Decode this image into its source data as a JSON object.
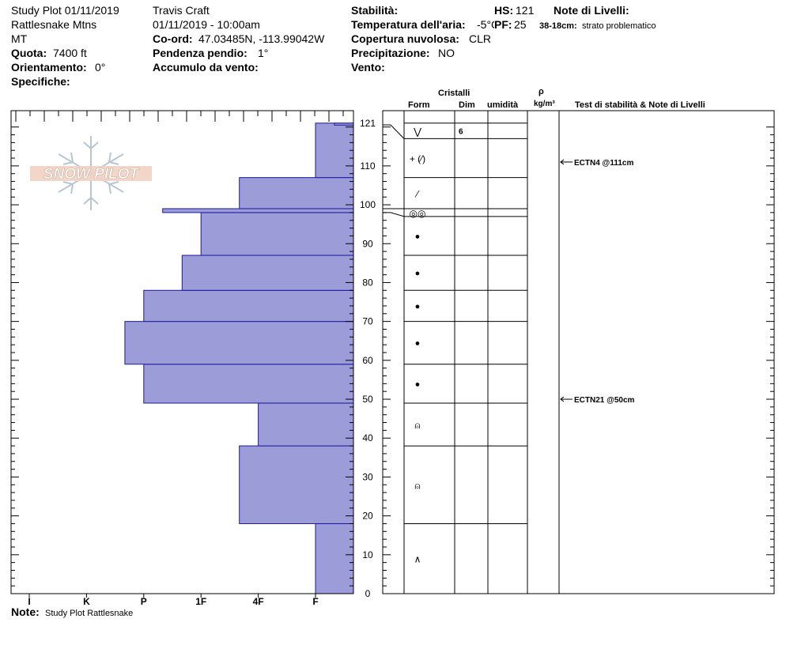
{
  "header": {
    "col1": {
      "title": "Study Plot 01/11/2019",
      "location": "Rattlesnake Mtns",
      "state": "MT",
      "elevation_label": "Quota:",
      "elevation_value": "7400 ft",
      "aspect_label": "Orientamento:",
      "aspect_value": "0°",
      "specifics_label": "Specifiche:"
    },
    "col2": {
      "observer": "Travis  Craft",
      "datetime": "01/11/2019 - 10:00am",
      "coord_label": "Co-ord:",
      "coord_value": "47.03485N, -113.99042W",
      "slope_label": "Pendenza pendio:",
      "slope_value": "1°",
      "wind_loading_label": "Accumulo da vento:"
    },
    "col3": {
      "stability_label": "Stabilità:",
      "air_temp_label": "Temperatura dell'aria:",
      "air_temp_value": "-5°C",
      "cloud_label": "Copertura nuvolosa:",
      "cloud_value": "CLR",
      "precip_label": "Precipitazione:",
      "precip_value": "NO",
      "wind_label": "Vento:"
    },
    "col4": {
      "hs_label": "HS:",
      "hs_value": "121",
      "pf_label": "PF:",
      "pf_value": "25"
    },
    "col5": {
      "layer_notes_label": "Note di Livelli:",
      "note_depth": "38-18cm:",
      "note_text": "strato problematico"
    }
  },
  "table_headers": {
    "crystals": "Cristalli",
    "form": "Form",
    "size": "Dim",
    "moisture": "umidità",
    "rho": "ρ",
    "density_unit": "kg/m³",
    "stability_notes": "Test di stabilità & Note di Livelli"
  },
  "footer": {
    "note_label": "Note:",
    "note_text": "Study Plot Rattlesnake"
  },
  "logo_text": "SNOW PILOT",
  "colors": {
    "bar_fill": "#9c9cd8",
    "bar_stroke": "#1a1aa0"
  },
  "chart_data": {
    "type": "bar",
    "orientation": "horizontal-step",
    "yaxis": {
      "range": [
        0,
        121
      ],
      "ticks": [
        "0",
        "10",
        "20",
        "30",
        "40",
        "50",
        "60",
        "70",
        "80",
        "90",
        "100",
        "110",
        "121"
      ]
    },
    "xaxis": {
      "categories": [
        "I",
        "K",
        "P",
        "1F",
        "4F",
        "F"
      ]
    },
    "hardness_layers": [
      {
        "bottom": 0,
        "top": 18,
        "hardness": "F"
      },
      {
        "bottom": 18,
        "top": 38,
        "hardness": "4F-"
      },
      {
        "bottom": 38,
        "top": 49,
        "hardness": "4F"
      },
      {
        "bottom": 49,
        "top": 59,
        "hardness": "P"
      },
      {
        "bottom": 59,
        "top": 70,
        "hardness": "P+"
      },
      {
        "bottom": 70,
        "top": 78,
        "hardness": "P"
      },
      {
        "bottom": 78,
        "top": 87,
        "hardness": "1F-"
      },
      {
        "bottom": 87,
        "top": 98,
        "hardness": "1F"
      },
      {
        "bottom": 98,
        "top": 99,
        "hardness": "P-"
      },
      {
        "bottom": 99,
        "top": 107,
        "hardness": "4F-"
      },
      {
        "bottom": 107,
        "top": 121,
        "hardness": "F"
      },
      {
        "bottom": 121,
        "top": 121,
        "hardness": "F-"
      }
    ],
    "hardness_positions": [
      {
        "hardness": "F",
        "value": 5.0
      },
      {
        "hardness": "4F",
        "value": 4.0
      },
      {
        "hardness": "4F-",
        "value": 3.67
      },
      {
        "hardness": "1F",
        "value": 3.0
      },
      {
        "hardness": "1F-",
        "value": 2.67
      },
      {
        "hardness": "P",
        "value": 2.0
      },
      {
        "hardness": "P+",
        "value": 1.67
      },
      {
        "hardness": "P-",
        "value": 2.33
      },
      {
        "hardness": "F-",
        "value": 5.33
      }
    ],
    "crystal_layers": [
      {
        "bottom": 117,
        "top": 121,
        "form": "precipitation-particles",
        "glyph": "⋁",
        "size": "6"
      },
      {
        "bottom": 107,
        "top": 117,
        "form": "mixed-decomposing",
        "glyph": "+ (⁄)",
        "size": ""
      },
      {
        "bottom": 99,
        "top": 107,
        "form": "decomposing-fragments",
        "glyph": "⁄",
        "size": ""
      },
      {
        "bottom": 97,
        "top": 99,
        "form": "melt-forms",
        "glyph": "◎◎",
        "size": ""
      },
      {
        "bottom": 87,
        "top": 97,
        "form": "rounded-grains",
        "glyph": "●",
        "size": ""
      },
      {
        "bottom": 78,
        "top": 87,
        "form": "rounded-grains",
        "glyph": "●",
        "size": ""
      },
      {
        "bottom": 70,
        "top": 78,
        "form": "rounded-grains",
        "glyph": "●",
        "size": ""
      },
      {
        "bottom": 59,
        "top": 70,
        "form": "rounded-grains",
        "glyph": "●",
        "size": ""
      },
      {
        "bottom": 49,
        "top": 59,
        "form": "rounded-grains",
        "glyph": "●",
        "size": ""
      },
      {
        "bottom": 38,
        "top": 49,
        "form": "faceted-crystals",
        "glyph": "⍝",
        "size": ""
      },
      {
        "bottom": 18,
        "top": 38,
        "form": "faceted-crystals",
        "glyph": "⍝",
        "size": ""
      },
      {
        "bottom": 0,
        "top": 18,
        "form": "depth-hoar",
        "glyph": "∧",
        "size": ""
      }
    ],
    "stability_tests": [
      {
        "depth": 111,
        "label": "ECTN4 @111cm"
      },
      {
        "depth": 50,
        "label": "ECTN21 @50cm"
      }
    ]
  }
}
